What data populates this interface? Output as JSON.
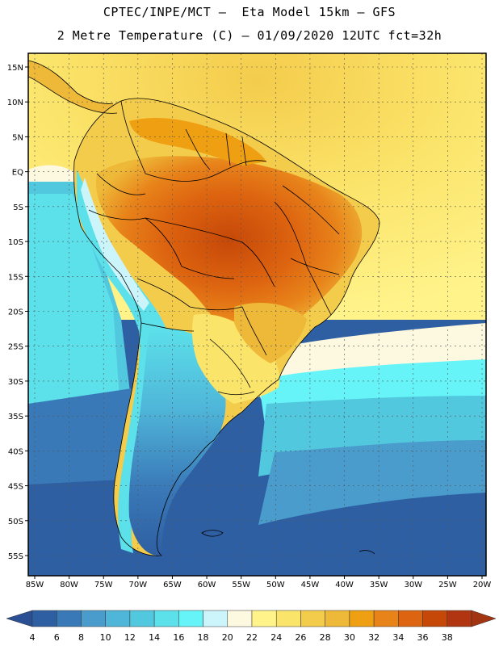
{
  "header": {
    "line1": "CPTEC/INPE/MCT –  Eta Model 15km – GFS",
    "line2": "2 Metre Temperature (C) – 01/09/2020 12UTC fct=32h"
  },
  "map": {
    "lat_labels": [
      "15N",
      "10N",
      "5N",
      "EQ",
      "5S",
      "10S",
      "15S",
      "20S",
      "25S",
      "30S",
      "35S",
      "40S",
      "45S",
      "50S",
      "55S"
    ],
    "lon_labels": [
      "85W",
      "80W",
      "75W",
      "70W",
      "65W",
      "60W",
      "55W",
      "50W",
      "45W",
      "40W",
      "35W",
      "30W",
      "25W",
      "20W"
    ],
    "lat_range": [
      15,
      -55
    ],
    "lon_range": [
      -85,
      -20
    ],
    "region": "South America"
  },
  "colorbar": {
    "levels": [
      "4",
      "6",
      "8",
      "10",
      "12",
      "14",
      "16",
      "18",
      "20",
      "22",
      "24",
      "26",
      "28",
      "30",
      "32",
      "34",
      "36",
      "38"
    ],
    "colors": [
      "#2e5fa3",
      "#3a79b8",
      "#4a9ccc",
      "#4fb6d9",
      "#52c8df",
      "#5ce0ea",
      "#66f4f8",
      "#ccf4fb",
      "#fdf8e0",
      "#fff38a",
      "#fbe46a",
      "#f4cc4c",
      "#eeb838",
      "#ee9f12",
      "#e8831a",
      "#dd6410",
      "#c64808",
      "#b03510"
    ],
    "low_color": "#2a4f95",
    "high_color": "#a23412"
  }
}
